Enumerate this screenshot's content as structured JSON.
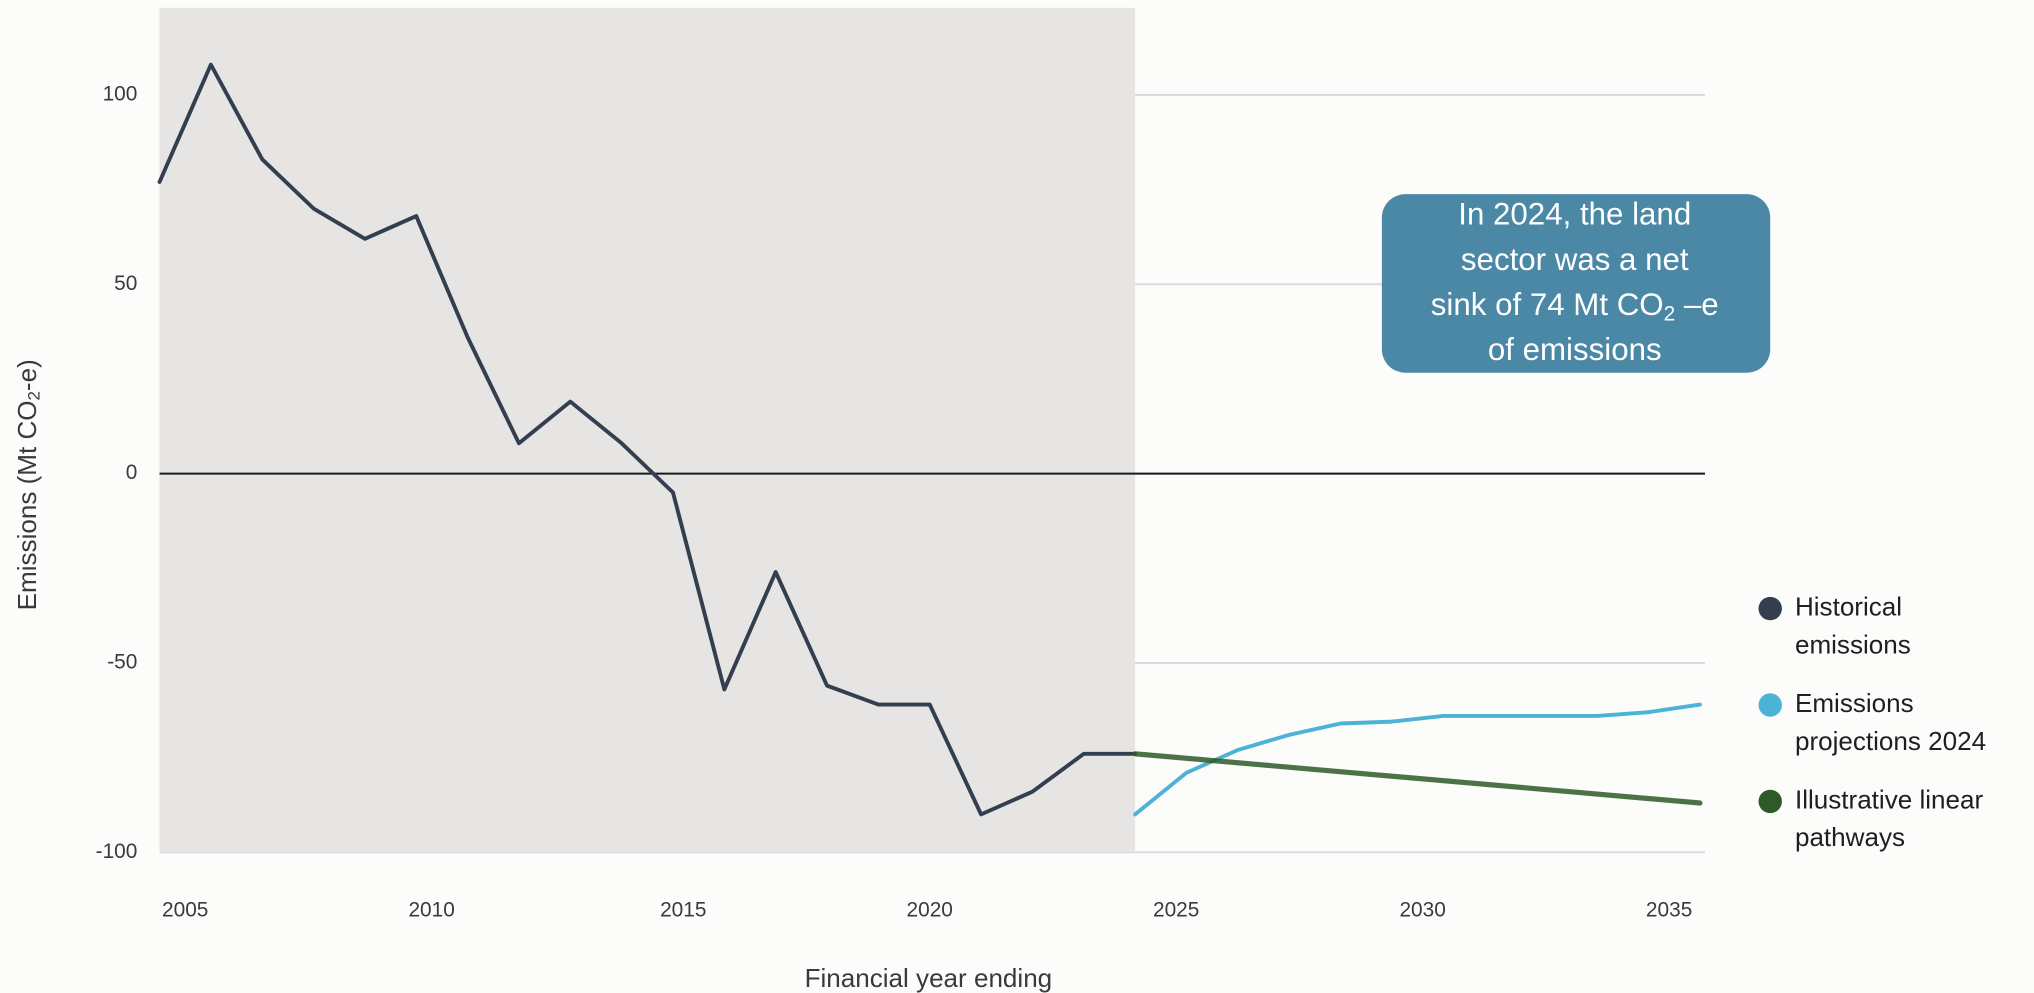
{
  "chart_data": {
    "type": "line",
    "x_label": "Financial year ending",
    "y_label": {
      "text": "Emissions (Mt CO",
      "sub": "2",
      "tail": "-e)"
    },
    "annotation": {
      "lines": [
        "In 2024, the land",
        "sector was a net",
        {
          "text": "sink of 74 Mt CO",
          "sub": "2",
          "tail": " –e"
        },
        "of emissions"
      ],
      "color": "#4a88a6"
    },
    "xlim": [
      2005,
      2035.1
    ],
    "ylim": [
      -100,
      123
    ],
    "xticks": [
      {
        "value": 2005.5,
        "label": "2005"
      },
      {
        "value": 2010.3,
        "label": "2010"
      },
      {
        "value": 2015.2,
        "label": "2015"
      },
      {
        "value": 2020,
        "label": "2020"
      },
      {
        "value": 2024.8,
        "label": "2025"
      },
      {
        "value": 2029.6,
        "label": "2030"
      },
      {
        "value": 2034.4,
        "label": "2035"
      }
    ],
    "yticks": [
      -100,
      -50,
      0,
      50,
      100
    ],
    "grid": true,
    "shade_xlim": [
      2005,
      2024
    ],
    "shade_color": "#e6e5e4",
    "legend": "right",
    "series": [
      {
        "name": "Historical emissions",
        "color": "#333f4f",
        "x": [
          2005,
          2006,
          2007,
          2008,
          2009,
          2010,
          2011,
          2012,
          2013,
          2014,
          2015,
          2016,
          2017,
          2018,
          2019,
          2020,
          2021,
          2022,
          2023,
          2024
        ],
        "values": [
          77,
          108,
          83,
          70,
          62,
          68,
          36,
          8,
          19,
          8,
          -5,
          -57,
          -26,
          -56,
          -61,
          -61,
          -90,
          -84,
          -74,
          -74
        ]
      },
      {
        "name": "Emissions projections 2024",
        "color": "#4db3d6",
        "x": [
          2024,
          2025,
          2026,
          2027,
          2028,
          2029,
          2030,
          2031,
          2032,
          2033,
          2034,
          2035
        ],
        "values": [
          -90,
          -79,
          -73,
          -69,
          -66,
          -65.5,
          -64,
          -64,
          -64,
          -64,
          -63,
          -61
        ]
      },
      {
        "name": "Illustrative linear pathways",
        "color": "#2d5a27",
        "x": [
          2024,
          2035
        ],
        "values": [
          -74,
          -87
        ]
      }
    ]
  }
}
